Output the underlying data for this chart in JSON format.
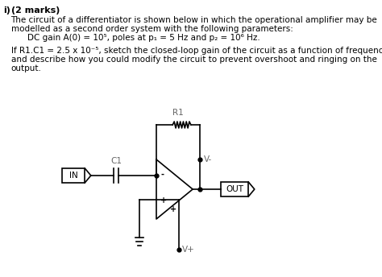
{
  "bg_color": "#ffffff",
  "text_color": "#000000",
  "gray_color": "#666666",
  "font_size": 7.5,
  "title": "i)  (2 marks)",
  "line1": "The circuit of a differentiator is shown below in which the operational amplifier may be",
  "line2": "modelled as a second order system with the following parameters:",
  "line3": "DC gain A(0) = 10⁵, poles at p₁ = 5 Hz and p₂ = 10⁶ Hz.",
  "line4": "If R1.C1 = 2.5 x 10⁻⁵, sketch the closed-loop gain of the circuit as a function of frequency,",
  "line5": "and describe how you could modify the circuit to prevent overshoot and ringing on the",
  "line6": "output.",
  "R1_label": "R1",
  "C1_label": "C1",
  "IN_label": "IN",
  "OUT_label": "OUT",
  "Vminus_label": "V-",
  "Vplus_label": "V+",
  "minus_sign": "-",
  "plus_sign": "+",
  "lw": 1.2
}
